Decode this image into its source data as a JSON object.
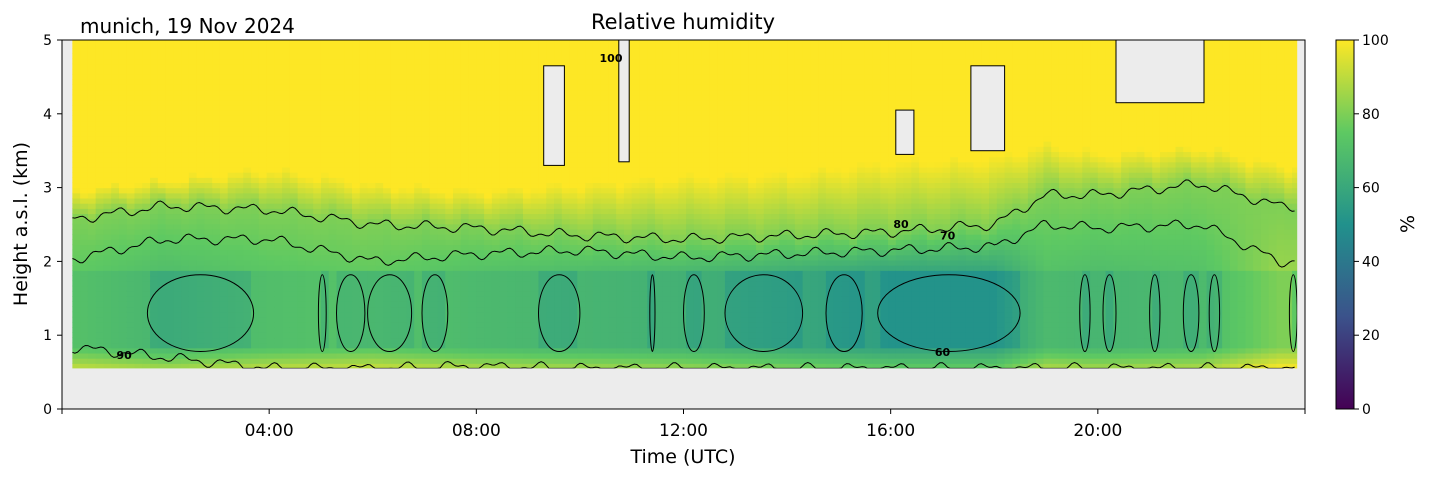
{
  "chart_data": {
    "type": "heatmap",
    "title": "Relative humidity",
    "subtitle": "munich, 19 Nov 2024",
    "xlabel": "Time (UTC)",
    "ylabel": "Height a.s.l. (km)",
    "xlim": [
      0,
      24
    ],
    "ylim": [
      0,
      5
    ],
    "x_ticks": [
      {
        "value": 4,
        "label": "04:00"
      },
      {
        "value": 8,
        "label": "08:00"
      },
      {
        "value": 12,
        "label": "12:00"
      },
      {
        "value": 16,
        "label": "16:00"
      },
      {
        "value": 20,
        "label": "20:00"
      }
    ],
    "y_ticks": [
      {
        "value": 0,
        "label": "0"
      },
      {
        "value": 1,
        "label": "1"
      },
      {
        "value": 2,
        "label": "2"
      },
      {
        "value": 3,
        "label": "3"
      },
      {
        "value": 4,
        "label": "4"
      },
      {
        "value": 5,
        "label": "5"
      }
    ],
    "data_bottom_km": 0.55,
    "colorbar": {
      "label": "%",
      "range": [
        0,
        100
      ],
      "ticks": [
        {
          "value": 0,
          "label": "0"
        },
        {
          "value": 20,
          "label": "20"
        },
        {
          "value": 40,
          "label": "40"
        },
        {
          "value": 60,
          "label": "60"
        },
        {
          "value": 80,
          "label": "80"
        },
        {
          "value": 100,
          "label": "100"
        }
      ],
      "colors": [
        "#440154",
        "#3b528b",
        "#21918c",
        "#5ec962",
        "#fde725"
      ]
    },
    "contour_levels": [
      60,
      70,
      80,
      90,
      100
    ],
    "contour_labels": [
      {
        "text": "100",
        "t": 10.6,
        "h": 4.7
      },
      {
        "text": "80",
        "t": 16.2,
        "h": 2.45
      },
      {
        "text": "70",
        "t": 17.1,
        "h": 2.3
      },
      {
        "text": "90",
        "t": 1.2,
        "h": 0.68
      },
      {
        "text": "60",
        "t": 17.0,
        "h": 0.72
      }
    ],
    "profile_hours": [
      0,
      2,
      4,
      6,
      8,
      10,
      12,
      14,
      16,
      18,
      19,
      20,
      22,
      23.5
    ],
    "contour_heights_km": {
      "c80": [
        2.55,
        2.75,
        2.7,
        2.5,
        2.45,
        2.35,
        2.3,
        2.35,
        2.4,
        2.5,
        2.9,
        2.9,
        3.05,
        2.75
      ],
      "c70": [
        2.0,
        2.3,
        2.3,
        2.0,
        2.1,
        2.15,
        2.05,
        2.1,
        2.15,
        2.2,
        2.5,
        2.45,
        2.5,
        2.0
      ],
      "c90": [
        0.85,
        0.7,
        0.55,
        0.55,
        0.58,
        0.55,
        0.55,
        0.55,
        0.55,
        0.55,
        0.55,
        0.55,
        0.55,
        0.55
      ]
    },
    "upper_moisture_km": [
      2.95,
      3.1,
      3.25,
      3.05,
      2.95,
      3.05,
      3.15,
      3.2,
      3.35,
      3.4,
      3.6,
      3.45,
      3.55,
      3.3
    ],
    "core_rh_percent": [
      72,
      66,
      70,
      72,
      68,
      66,
      64,
      60,
      56,
      56,
      68,
      66,
      68,
      80
    ],
    "no_data_regions": [
      {
        "t0": 9.3,
        "t1": 9.7,
        "h0": 3.3,
        "h1": 4.65
      },
      {
        "t0": 10.75,
        "t1": 10.95,
        "h0": 3.35,
        "h1": 5.0
      },
      {
        "t0": 16.1,
        "t1": 16.45,
        "h0": 3.45,
        "h1": 4.05
      },
      {
        "t0": 17.55,
        "t1": 18.2,
        "h0": 3.5,
        "h1": 4.65
      },
      {
        "t0": 20.35,
        "t1": 22.05,
        "h0": 4.15,
        "h1": 5.0
      }
    ],
    "dry_cells": [
      {
        "t0": 1.65,
        "t1": 3.7
      },
      {
        "t0": 4.95,
        "t1": 5.1
      },
      {
        "t0": 5.3,
        "t1": 5.85
      },
      {
        "t0": 5.9,
        "t1": 6.75
      },
      {
        "t0": 6.95,
        "t1": 7.45
      },
      {
        "t0": 9.2,
        "t1": 10.0
      },
      {
        "t0": 11.35,
        "t1": 11.45
      },
      {
        "t0": 12.0,
        "t1": 12.4
      },
      {
        "t0": 12.8,
        "t1": 14.3
      },
      {
        "t0": 14.75,
        "t1": 15.45
      },
      {
        "t0": 15.75,
        "t1": 18.5
      },
      {
        "t0": 19.65,
        "t1": 19.85
      },
      {
        "t0": 20.1,
        "t1": 20.35
      },
      {
        "t0": 21.0,
        "t1": 21.2
      },
      {
        "t0": 21.65,
        "t1": 21.95
      },
      {
        "t0": 22.15,
        "t1": 22.35
      },
      {
        "t0": 23.7,
        "t1": 23.85
      }
    ]
  }
}
